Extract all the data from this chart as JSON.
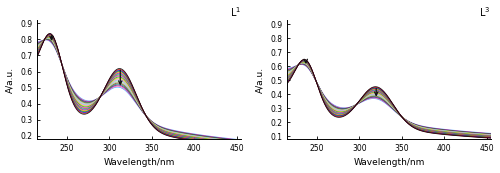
{
  "title_L1": "L$^1$",
  "title_L3": "L$^3$",
  "xlabel": "Wavelength/nm",
  "ylabel": "A/a.u.",
  "L1_ylim": [
    0.18,
    0.92
  ],
  "L3_ylim": [
    0.08,
    0.93
  ],
  "L1_yticks": [
    0.2,
    0.3,
    0.4,
    0.5,
    0.6,
    0.7,
    0.8,
    0.9
  ],
  "L3_yticks": [
    0.1,
    0.2,
    0.3,
    0.4,
    0.5,
    0.6,
    0.7,
    0.8,
    0.9
  ],
  "n_curves": 20,
  "L1_peak1_wl": 232,
  "L1_peak2_wl": 313,
  "L3_peak1_wl": 237,
  "L3_peak2_wl": 320,
  "colors": [
    "#000000",
    "#cc0000",
    "#0000dd",
    "#009900",
    "#ff8800",
    "#aa00aa",
    "#00aaaa",
    "#888800",
    "#ff00ff",
    "#00cc00",
    "#cccc00",
    "#ff9999",
    "#9999ff",
    "#99ff99",
    "#aaaaaa",
    "#884400",
    "#008866",
    "#550088",
    "#ff4499",
    "#44aaff"
  ]
}
